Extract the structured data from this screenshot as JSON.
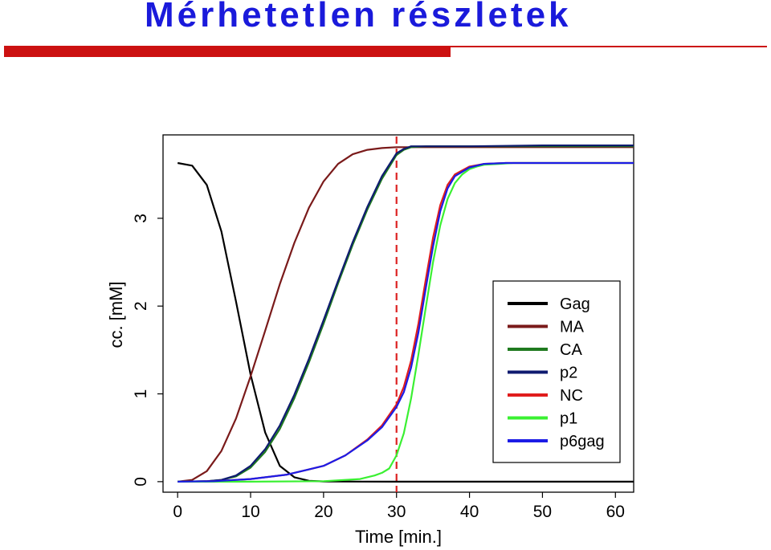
{
  "slide": {
    "title": "Mérhetetlen részletek"
  },
  "colors": {
    "title": "#1a1adb",
    "rule": "#cc1111",
    "marker": "#dd2222"
  },
  "chart_data": {
    "type": "line",
    "xlabel": "Time [min.]",
    "ylabel": "cc. [mM]",
    "xlim": [
      -2,
      62.5
    ],
    "ylim": [
      -0.12,
      3.95
    ],
    "xticks": [
      0,
      10,
      20,
      30,
      40,
      50,
      60
    ],
    "yticks": [
      0,
      1,
      2,
      3
    ],
    "grid": false,
    "legend_position": "right",
    "vline": {
      "x": 30,
      "style": "dashed",
      "color": "#dd2222"
    },
    "series": [
      {
        "name": "Gag",
        "color": "#000000",
        "x": [
          0,
          2,
          4,
          6,
          8,
          10,
          12,
          14,
          16,
          18,
          20,
          25,
          30,
          40,
          50,
          62.5
        ],
        "y": [
          3.63,
          3.6,
          3.38,
          2.85,
          2.05,
          1.22,
          0.56,
          0.18,
          0.05,
          0.01,
          0.003,
          0.001,
          0,
          0,
          0,
          0
        ]
      },
      {
        "name": "MA",
        "color": "#7a1a1a",
        "x": [
          0,
          2,
          4,
          6,
          8,
          10,
          12,
          14,
          16,
          18,
          20,
          22,
          24,
          26,
          28,
          30,
          32,
          36,
          40,
          50,
          62.5
        ],
        "y": [
          0,
          0.02,
          0.12,
          0.35,
          0.72,
          1.2,
          1.72,
          2.25,
          2.72,
          3.12,
          3.42,
          3.62,
          3.73,
          3.78,
          3.8,
          3.81,
          3.81,
          3.81,
          3.81,
          3.81,
          3.81
        ]
      },
      {
        "name": "CA",
        "color": "#1f7a1f",
        "x": [
          0,
          4,
          6,
          8,
          10,
          12,
          14,
          16,
          18,
          20,
          22,
          24,
          26,
          28,
          30,
          31,
          32,
          34,
          40,
          50,
          62.5
        ],
        "y": [
          0,
          0.005,
          0.02,
          0.06,
          0.16,
          0.34,
          0.6,
          0.95,
          1.36,
          1.8,
          2.26,
          2.7,
          3.1,
          3.45,
          3.72,
          3.78,
          3.81,
          3.82,
          3.82,
          3.82,
          3.82
        ]
      },
      {
        "name": "p2",
        "color": "#0f1b70",
        "x": [
          0,
          4,
          6,
          8,
          10,
          12,
          14,
          16,
          18,
          20,
          22,
          24,
          26,
          28,
          30,
          31,
          32,
          34,
          40,
          50,
          62.5
        ],
        "y": [
          0,
          0.005,
          0.02,
          0.07,
          0.18,
          0.37,
          0.64,
          0.99,
          1.4,
          1.84,
          2.29,
          2.73,
          3.13,
          3.48,
          3.74,
          3.79,
          3.82,
          3.82,
          3.82,
          3.83,
          3.83
        ]
      },
      {
        "name": "NC",
        "color": "#e01c1c",
        "x": [
          0,
          5,
          10,
          15,
          20,
          23,
          26,
          28,
          30,
          31,
          32,
          33,
          34,
          35,
          36,
          37,
          38,
          40,
          42,
          45,
          50,
          62.5
        ],
        "y": [
          0,
          0.005,
          0.03,
          0.08,
          0.18,
          0.3,
          0.48,
          0.64,
          0.88,
          1.08,
          1.38,
          1.8,
          2.3,
          2.78,
          3.15,
          3.38,
          3.5,
          3.59,
          3.62,
          3.63,
          3.63,
          3.63
        ]
      },
      {
        "name": "p1",
        "color": "#3af032",
        "x": [
          0,
          10,
          20,
          25,
          27,
          28,
          29,
          30,
          31,
          32,
          33,
          34,
          35,
          36,
          37,
          38,
          39,
          40,
          41,
          42,
          44,
          46,
          50,
          62.5
        ],
        "y": [
          0,
          0,
          0.005,
          0.03,
          0.07,
          0.1,
          0.15,
          0.3,
          0.55,
          0.95,
          1.45,
          1.98,
          2.5,
          2.92,
          3.22,
          3.4,
          3.5,
          3.56,
          3.59,
          3.61,
          3.62,
          3.63,
          3.63,
          3.63
        ]
      },
      {
        "name": "p6gag",
        "color": "#1c1ce6",
        "x": [
          0,
          5,
          10,
          15,
          20,
          23,
          26,
          28,
          30,
          31,
          32,
          33,
          34,
          35,
          36,
          37,
          38,
          40,
          42,
          45,
          50,
          62.5
        ],
        "y": [
          0,
          0.005,
          0.03,
          0.08,
          0.18,
          0.3,
          0.47,
          0.62,
          0.85,
          1.02,
          1.3,
          1.7,
          2.2,
          2.68,
          3.08,
          3.34,
          3.48,
          3.58,
          3.62,
          3.63,
          3.63,
          3.63
        ]
      }
    ]
  }
}
